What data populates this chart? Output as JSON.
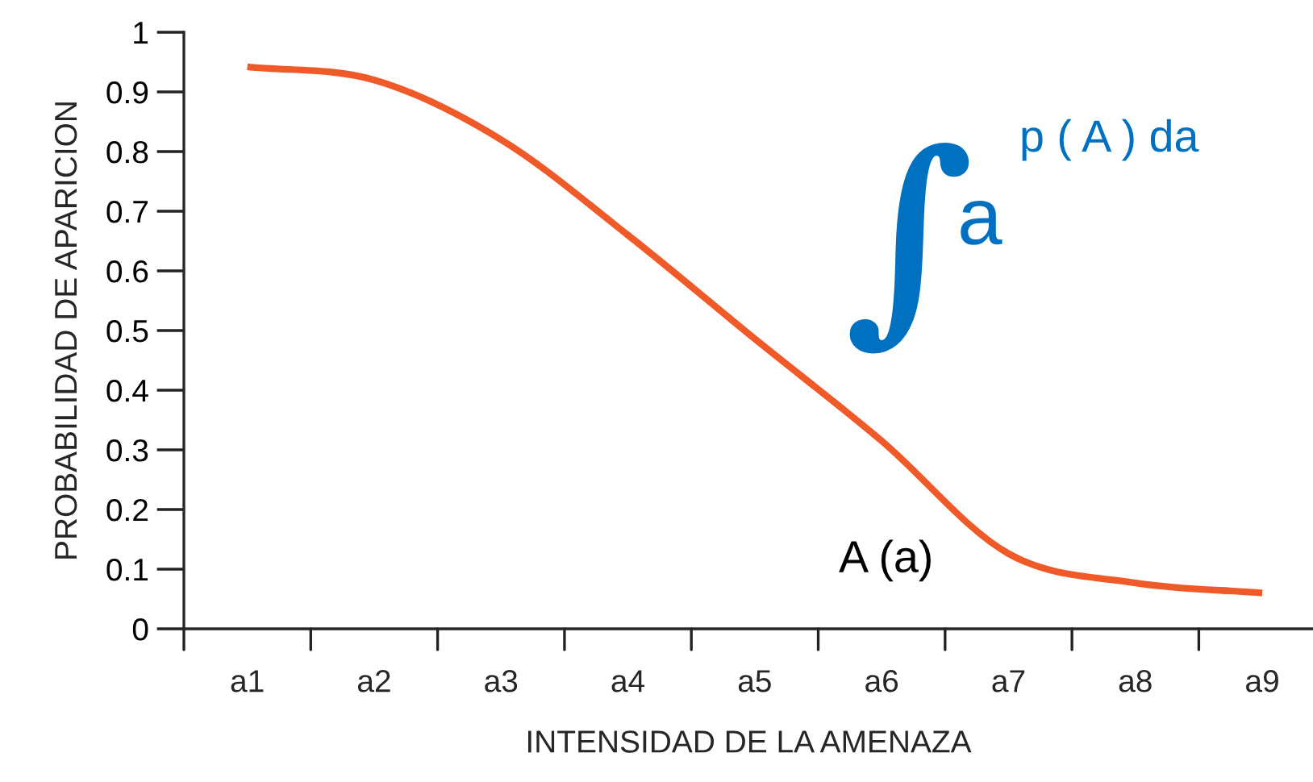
{
  "chart_data": {
    "type": "line",
    "xlabel": "INTENSIDAD DE LA AMENAZA",
    "ylabel": "PROBABILIDAD DE APARICION",
    "categories": [
      "a1",
      "a2",
      "a3",
      "a4",
      "a5",
      "a6",
      "a7",
      "a8",
      "a9"
    ],
    "series": [
      {
        "color": "#f05a28",
        "values": [
          0.942,
          0.92,
          0.82,
          0.66,
          0.486,
          0.315,
          0.126,
          0.077,
          0.06
        ]
      }
    ],
    "ylim": [
      0,
      1
    ],
    "yticks": [
      0,
      0.1,
      0.2,
      0.3,
      0.4,
      0.5,
      0.6,
      0.7,
      0.8,
      0.9,
      1
    ],
    "annotations": [
      "A (a)",
      "∫",
      "a",
      "p ( A ) da"
    ],
    "grid": false,
    "legend": false,
    "marker": "none",
    "line_style": "solid"
  }
}
